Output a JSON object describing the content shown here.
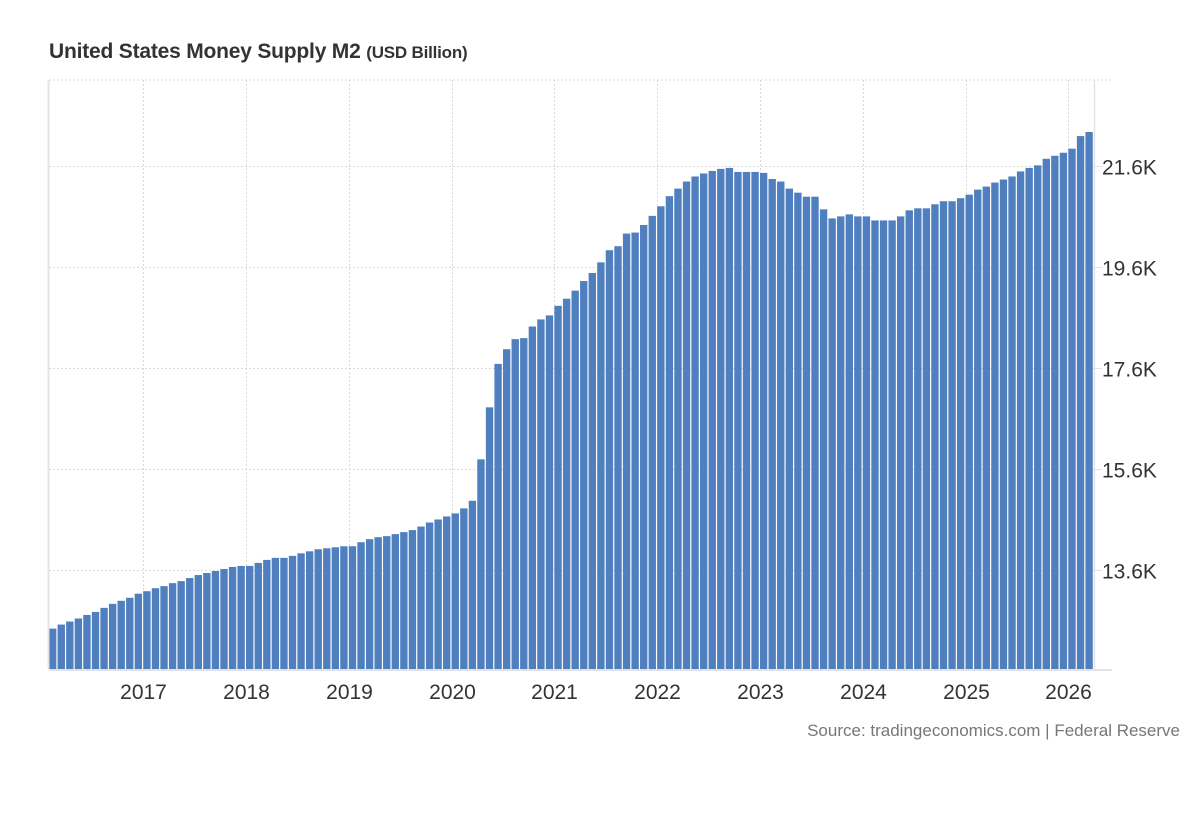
{
  "header": {
    "title": "United States Money Supply M2",
    "unit": "(USD Billion)"
  },
  "footer": {
    "source": "Source: tradingeconomics.com | Federal Reserve"
  },
  "colors": {
    "bar": "#4f7fbf",
    "grid": "#d9d9d9",
    "axis": "#e3e3e3",
    "text": "#333333"
  },
  "chart_data": {
    "type": "bar",
    "title": "United States Money Supply M2",
    "subtitle": "(USD Billion)",
    "xlabel": "",
    "ylabel": "",
    "ylim": [
      11640,
      23300
    ],
    "grid": true,
    "y_axis_position": "right",
    "y_ticks": [
      {
        "value": 13600,
        "label": "13.6K"
      },
      {
        "value": 15600,
        "label": "15.6K"
      },
      {
        "value": 17600,
        "label": "17.6K"
      },
      {
        "value": 19600,
        "label": "19.6K"
      },
      {
        "value": 21600,
        "label": "21.6K"
      }
    ],
    "x_ticks": [
      {
        "value": "2017-01",
        "label": "2017"
      },
      {
        "value": "2018-01",
        "label": "2018"
      },
      {
        "value": "2019-01",
        "label": "2019"
      },
      {
        "value": "2020-01",
        "label": "2020"
      },
      {
        "value": "2021-01",
        "label": "2021"
      },
      {
        "value": "2022-01",
        "label": "2022"
      },
      {
        "value": "2023-01",
        "label": "2023"
      },
      {
        "value": "2024-01",
        "label": "2024"
      },
      {
        "value": "2025-01",
        "label": "2025"
      },
      {
        "value": "2026-01",
        "label": "2026"
      }
    ],
    "start_month": "2016-02",
    "series": [
      {
        "name": "Money Supply M2",
        "values": [
          12440,
          12520,
          12580,
          12640,
          12710,
          12770,
          12850,
          12930,
          12990,
          13050,
          13130,
          13180,
          13240,
          13280,
          13340,
          13380,
          13440,
          13500,
          13540,
          13580,
          13620,
          13660,
          13680,
          13680,
          13740,
          13800,
          13840,
          13840,
          13880,
          13930,
          13970,
          14010,
          14030,
          14050,
          14070,
          14070,
          14150,
          14210,
          14250,
          14270,
          14310,
          14350,
          14390,
          14460,
          14540,
          14600,
          14660,
          14720,
          14820,
          14970,
          15790,
          16820,
          17680,
          17970,
          18170,
          18190,
          18420,
          18560,
          18640,
          18830,
          18970,
          19130,
          19320,
          19480,
          19690,
          19930,
          20010,
          20260,
          20280,
          20430,
          20610,
          20800,
          21000,
          21150,
          21290,
          21390,
          21450,
          21500,
          21540,
          21560,
          21480,
          21480,
          21480,
          21460,
          21340,
          21290,
          21150,
          21070,
          20990,
          20990,
          20740,
          20560,
          20600,
          20640,
          20600,
          20600,
          20520,
          20520,
          20520,
          20600,
          20720,
          20760,
          20760,
          20840,
          20900,
          20900,
          20960,
          21030,
          21130,
          21190,
          21270,
          21330,
          21390,
          21490,
          21560,
          21610,
          21740,
          21800,
          21860,
          21940,
          22190,
          22270
        ]
      }
    ]
  }
}
